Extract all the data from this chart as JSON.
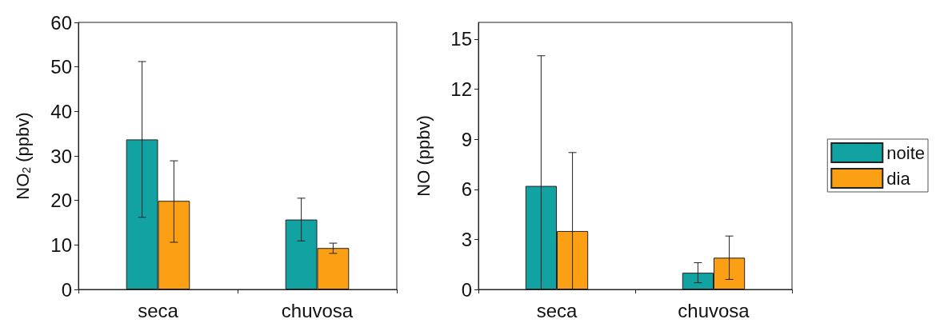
{
  "chart_data": [
    {
      "type": "bar",
      "ylabel": "NO$_{2}$ (ppbv)",
      "categories": [
        "seca",
        "chuvosa"
      ],
      "ylim": [
        0,
        60
      ],
      "yticks": [
        0,
        10,
        20,
        30,
        40,
        50,
        60
      ],
      "grid": false,
      "legend": false,
      "series": [
        {
          "color": "#13a2a2",
          "values": [
            33.7,
            15.7
          ],
          "errors": [
            [
              16.2,
              51.2
            ],
            [
              10.9,
              20.5
            ]
          ]
        },
        {
          "color": "#fb9f14",
          "values": [
            19.9,
            9.3
          ],
          "errors": [
            [
              10.6,
              28.9
            ],
            [
              8.1,
              10.4
            ]
          ]
        }
      ]
    },
    {
      "type": "bar",
      "ylabel": "NO (ppbv)",
      "categories": [
        "seca",
        "chuvosa"
      ],
      "ylim": [
        0,
        16
      ],
      "yticks": [
        0,
        3,
        6,
        9,
        12,
        15
      ],
      "grid": false,
      "legend": "right",
      "series": [
        {
          "name": "noite",
          "color": "#13a2a2",
          "values": [
            6.2,
            1.0
          ],
          "errors": [
            [
              0,
              14.0
            ],
            [
              0.4,
              1.6
            ]
          ]
        },
        {
          "name": "dia",
          "color": "#fb9f14",
          "values": [
            3.5,
            1.9
          ],
          "errors": [
            [
              0,
              8.2
            ],
            [
              0.6,
              3.2
            ]
          ]
        }
      ]
    }
  ]
}
